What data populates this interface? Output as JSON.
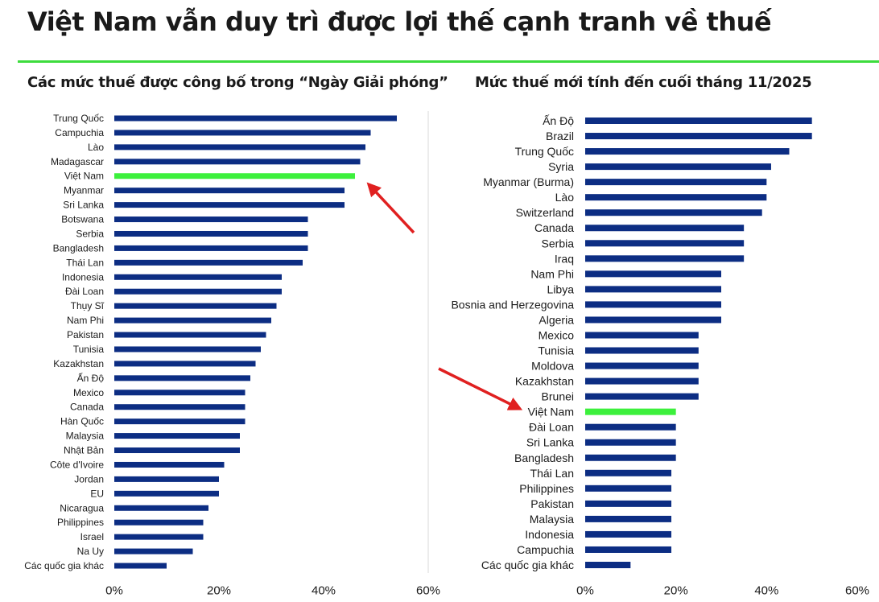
{
  "title": "Việt Nam vẫn duy trì được lợi thế cạnh tranh về thuế",
  "colors": {
    "bar": "#0c2d83",
    "highlight": "#3cf03c",
    "arrow": "#e02020",
    "rule": "#3ddc3d",
    "axis": "#d9d9d9"
  },
  "chart_data": [
    {
      "type": "bar",
      "orientation": "horizontal",
      "title": "Các mức thuế được công bố trong “Ngày Giải phóng”",
      "xlabel": "",
      "ylabel": "",
      "xlim": [
        0,
        60
      ],
      "xticks": [
        0,
        20,
        40,
        60
      ],
      "xtick_labels": [
        "0%",
        "20%",
        "40%",
        "60%"
      ],
      "highlight": "Việt Nam",
      "categories": [
        "Trung Quốc",
        "Campuchia",
        "Lào",
        "Madagascar",
        "Việt Nam",
        "Myanmar",
        "Sri Lanka",
        "Botswana",
        "Serbia",
        "Bangladesh",
        "Thái Lan",
        "Indonesia",
        "Đài Loan",
        "Thụy Sĩ",
        "Nam Phi",
        "Pakistan",
        "Tunisia",
        "Kazakhstan",
        "Ấn Độ",
        "Mexico",
        "Canada",
        "Hàn Quốc",
        "Malaysia",
        "Nhật Bản",
        "Côte d'Ivoire",
        "Jordan",
        "EU",
        "Nicaragua",
        "Philippines",
        "Israel",
        "Na Uy",
        "Các quốc gia khác"
      ],
      "values": [
        54,
        49,
        48,
        47,
        46,
        44,
        44,
        37,
        37,
        37,
        36,
        32,
        32,
        31,
        30,
        29,
        28,
        27,
        26,
        25,
        25,
        25,
        24,
        24,
        21,
        20,
        20,
        18,
        17,
        17,
        15,
        10
      ]
    },
    {
      "type": "bar",
      "orientation": "horizontal",
      "title": "Mức thuế mới tính đến cuối tháng 11/2025",
      "xlabel": "",
      "ylabel": "",
      "xlim": [
        0,
        60
      ],
      "xticks": [
        0,
        20,
        40,
        60
      ],
      "xtick_labels": [
        "0%",
        "20%",
        "40%",
        "60%"
      ],
      "highlight": "Việt Nam",
      "categories": [
        "Ấn Độ",
        "Brazil",
        "Trung Quốc",
        "Syria",
        "Myanmar (Burma)",
        "Lào",
        "Switzerland",
        "Canada",
        "Serbia",
        "Iraq",
        "Nam Phi",
        "Libya",
        "Bosnia and Herzegovina",
        "Algeria",
        "Mexico",
        "Tunisia",
        "Moldova",
        "Kazakhstan",
        "Brunei",
        "Việt Nam",
        "Đài Loan",
        "Sri Lanka",
        "Bangladesh",
        "Thái Lan",
        "Philippines",
        "Pakistan",
        "Malaysia",
        "Indonesia",
        "Campuchia",
        "Các quốc gia khác"
      ],
      "values": [
        50,
        50,
        45,
        41,
        40,
        40,
        39,
        35,
        35,
        35,
        30,
        30,
        30,
        30,
        25,
        25,
        25,
        25,
        25,
        20,
        20,
        20,
        20,
        19,
        19,
        19,
        19,
        19,
        19,
        10
      ]
    }
  ]
}
